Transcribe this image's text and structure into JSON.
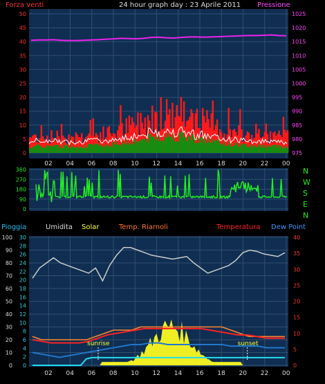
{
  "header": {
    "title": "24 hour graph day : 23 Aprile 2011",
    "left_label": "Forza venti",
    "right_label": "Pressione"
  },
  "wind_dir_labels": [
    "N",
    "W",
    "S",
    "E",
    "N"
  ],
  "legend_row": {
    "items": [
      {
        "label": "Pioggia",
        "color": "#22bbee"
      },
      {
        "label": "Umidita",
        "color": "#dddddd"
      },
      {
        "label": "Solar",
        "color": "#ffff33"
      },
      {
        "label": "Temp. Riarnoli",
        "color": "#ff7722"
      },
      {
        "label": "Temperatura",
        "color": "#ff2222"
      },
      {
        "label": "Dew Point",
        "color": "#3399ff"
      }
    ]
  },
  "x_ticks": [
    "02",
    "04",
    "06",
    "08",
    "10",
    "12",
    "14",
    "16",
    "18",
    "20",
    "22",
    "00"
  ],
  "sun_labels": {
    "sunrise": "sunrise",
    "sunset": "sunset"
  },
  "colors": {
    "panel_bg": "#0f2e52",
    "grid": "#324e6e",
    "wind_red": "#ff1a1a",
    "wind_green": "#109010",
    "wind_white": "#ffffff",
    "pressure": "#ee22ee",
    "direction": "#22ee22",
    "humidity": "#cccccc",
    "temp_riarnoli": "#ff8833",
    "temperature": "#ff2222",
    "dewpoint": "#2277cc",
    "rain": "#22ddee",
    "solar": "#eeee22",
    "axis_red": "#ff3030",
    "axis_magenta": "#ff44ff",
    "axis_cyan": "#33ccdd"
  },
  "chart_data": [
    {
      "type": "bar",
      "name": "wind_and_pressure",
      "y_left_ticks": [
        "0",
        "5",
        "10",
        "15",
        "20",
        "25",
        "30",
        "35",
        "40",
        "45",
        "50"
      ],
      "y_right_ticks": [
        "975",
        "980",
        "985",
        "990",
        "995",
        "1000",
        "1005",
        "1010",
        "1015",
        "1020",
        "1025"
      ],
      "ylim_left": [
        0,
        50
      ],
      "ylim_right": [
        975,
        1025
      ],
      "pressure": [
        1015.5,
        1015.6,
        1015.6,
        1015.7,
        1015.5,
        1015.4,
        1015.4,
        1015.5,
        1015.6,
        1015.7,
        1015.9,
        1016.0,
        1016.2,
        1016.1,
        1016.0,
        1016.2,
        1016.5,
        1016.6,
        1016.4,
        1016.3,
        1016.5,
        1016.7,
        1016.7,
        1016.6,
        1016.7,
        1016.8,
        1016.9,
        1017.0,
        1017.1,
        1017.2,
        1017.2,
        1017.3,
        1017.4,
        1017.2,
        1017.1
      ]
    },
    {
      "type": "line",
      "name": "wind_direction",
      "y_ticks": [
        "0",
        "90",
        "180",
        "270",
        "360"
      ],
      "ylim": [
        0,
        360
      ]
    },
    {
      "type": "line",
      "name": "temperature_humidity",
      "y_left_ticks": [
        "0",
        "10",
        "20",
        "30",
        "40",
        "50",
        "60",
        "70",
        "80",
        "90",
        "100"
      ],
      "y_mid_ticks": [
        "0",
        "2",
        "4",
        "6",
        "8",
        "10",
        "12",
        "14",
        "16",
        "18",
        "20",
        "22",
        "24",
        "26",
        "28",
        "30"
      ],
      "y_right_ticks": [
        "0",
        "5",
        "10",
        "15",
        "20",
        "25",
        "30",
        "35",
        "40"
      ],
      "humidity": [
        68,
        76,
        80,
        84,
        80,
        78,
        76,
        74,
        72,
        76,
        66,
        78,
        86,
        92,
        92,
        90,
        88,
        86,
        85,
        84,
        83,
        84,
        85,
        80,
        76,
        72,
        74,
        76,
        78,
        82,
        88,
        90,
        89,
        87,
        86,
        85,
        88
      ],
      "temp_riarnoli": [
        9,
        8,
        8,
        8,
        8,
        8,
        8,
        9,
        10,
        11,
        11,
        11,
        12,
        12,
        12,
        12,
        12,
        12,
        12,
        12,
        12,
        12,
        11,
        10,
        9,
        9,
        9,
        9,
        9
      ],
      "temperature": [
        8,
        7.5,
        7,
        7,
        7,
        7,
        7.5,
        8.5,
        9.5,
        10,
        10.5,
        11,
        11.5,
        11.5,
        11.5,
        11.5,
        11.5,
        11.5,
        11.5,
        11,
        10.5,
        10,
        9.5,
        9.5,
        9,
        8.5,
        8.5,
        8.5
      ],
      "dewpoint": [
        4,
        3.5,
        3,
        2.5,
        3,
        3.5,
        4,
        4.5,
        5,
        5.5,
        6,
        6.5,
        6.5,
        7,
        7,
        6.5,
        6.5,
        6.5,
        6.5,
        6.5,
        6.5,
        6.5,
        6,
        6,
        6,
        6,
        5.5,
        5.5,
        5.5
      ],
      "rain": [
        0,
        0,
        0,
        0,
        0,
        0,
        0,
        0,
        0,
        0,
        1.5,
        1.8,
        1.8,
        1.8,
        1.8,
        1.8,
        1.8,
        1.8,
        1.8,
        1.8,
        1.8,
        1.8,
        1.8,
        1.8,
        1.8,
        1.8,
        1.8,
        1.8,
        1.8,
        1.8,
        1.8,
        1.8,
        1.8,
        1.8,
        1.8,
        1.8,
        1.8,
        1.8,
        1.8,
        1.8,
        1.8,
        1.8,
        1.8,
        1.8,
        1.8,
        1.8,
        1.8,
        1.8
      ]
    }
  ]
}
